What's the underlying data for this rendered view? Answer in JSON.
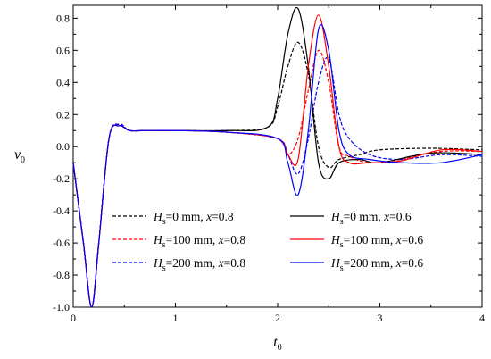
{
  "chart_data": {
    "type": "line",
    "xlabel": "t",
    "xlabel_sub": "0",
    "ylabel": "v",
    "ylabel_sub": "0",
    "xlim": [
      0,
      4
    ],
    "ylim": [
      -1.0,
      0.88
    ],
    "xticks": [
      0,
      1,
      2,
      3,
      4
    ],
    "xtick_labels": [
      "0",
      "1",
      "2",
      "3",
      "4"
    ],
    "yticks": [
      -1.0,
      -0.8,
      -0.6,
      -0.4,
      -0.2,
      0.0,
      0.2,
      0.4,
      0.6,
      0.8
    ],
    "ytick_labels": [
      "-1.0",
      "-0.8",
      "-0.6",
      "-0.4",
      "-0.2",
      "0.0",
      "0.2",
      "0.4",
      "0.6",
      "0.8"
    ],
    "grid": false,
    "legend_position": "lower-center-right",
    "series": [
      {
        "name": "Hs=0 mm, x=0.8",
        "legend": {
          "var": "H",
          "sub": "s",
          "rest1": "=0 mm,    ",
          "var2": "x",
          "rest2": "=0.8"
        },
        "color": "#000000",
        "dash": "dash",
        "x": [
          0,
          0.1,
          0.18,
          0.25,
          0.35,
          0.45,
          0.55,
          0.7,
          1.0,
          1.5,
          1.9,
          2.0,
          2.1,
          2.2,
          2.3,
          2.4,
          2.5,
          2.6,
          2.8,
          3.0,
          3.5,
          4.0
        ],
        "y": [
          -0.1,
          -0.6,
          -1.0,
          -0.6,
          0.05,
          0.14,
          0.1,
          0.1,
          0.1,
          0.1,
          0.12,
          0.25,
          0.5,
          0.65,
          0.45,
          0.0,
          -0.13,
          -0.08,
          -0.05,
          -0.02,
          -0.01,
          -0.02
        ]
      },
      {
        "name": "Hs=100 mm, x=0.8",
        "legend": {
          "var": "H",
          "sub": "s",
          "rest1": "=100 mm, ",
          "var2": "x",
          "rest2": "=0.8"
        },
        "color": "#ff0000",
        "dash": "dash",
        "x": [
          0,
          0.1,
          0.18,
          0.25,
          0.35,
          0.45,
          0.55,
          0.7,
          1.0,
          1.5,
          2.0,
          2.1,
          2.2,
          2.3,
          2.4,
          2.5,
          2.6,
          2.7,
          2.9,
          3.2,
          3.6,
          4.0
        ],
        "y": [
          -0.1,
          -0.6,
          -1.0,
          -0.6,
          0.05,
          0.14,
          0.1,
          0.1,
          0.1,
          0.09,
          0.05,
          -0.05,
          0.05,
          0.35,
          0.6,
          0.4,
          0.0,
          -0.06,
          -0.1,
          -0.08,
          -0.03,
          -0.03
        ]
      },
      {
        "name": "Hs=200 mm, x=0.8",
        "legend": {
          "var": "H",
          "sub": "s",
          "rest1": "=200 mm, ",
          "var2": "x",
          "rest2": "=0.8"
        },
        "color": "#0000ff",
        "dash": "dash",
        "x": [
          0,
          0.1,
          0.18,
          0.25,
          0.35,
          0.45,
          0.55,
          0.7,
          1.0,
          1.5,
          2.0,
          2.1,
          2.2,
          2.3,
          2.4,
          2.5,
          2.6,
          2.7,
          2.9,
          3.2,
          3.6,
          4.0
        ],
        "y": [
          -0.1,
          -0.6,
          -1.0,
          -0.6,
          0.05,
          0.14,
          0.1,
          0.1,
          0.1,
          0.09,
          0.05,
          -0.05,
          -0.17,
          0.05,
          0.4,
          0.55,
          0.2,
          0.05,
          -0.05,
          -0.08,
          -0.05,
          -0.06
        ]
      },
      {
        "name": "Hs=0 mm, x=0.6",
        "legend": {
          "var": "H",
          "sub": "s",
          "rest1": "=0 mm,    ",
          "var2": "x",
          "rest2": "=0.6"
        },
        "color": "#000000",
        "dash": "solid",
        "x": [
          0,
          0.1,
          0.18,
          0.25,
          0.35,
          0.45,
          0.55,
          0.7,
          1.0,
          1.5,
          1.9,
          2.0,
          2.1,
          2.2,
          2.3,
          2.4,
          2.5,
          2.6,
          2.8,
          3.0,
          3.5,
          4.0
        ],
        "y": [
          -0.1,
          -0.6,
          -1.0,
          -0.6,
          0.05,
          0.13,
          0.1,
          0.1,
          0.1,
          0.1,
          0.12,
          0.3,
          0.7,
          0.86,
          0.5,
          -0.1,
          -0.2,
          -0.1,
          -0.08,
          -0.1,
          -0.04,
          -0.05
        ]
      },
      {
        "name": "Hs=100 mm, x=0.6",
        "legend": {
          "var": "H",
          "sub": "s",
          "rest1": "=100 mm, ",
          "var2": "x",
          "rest2": "=0.6"
        },
        "color": "#ff0000",
        "dash": "solid",
        "x": [
          0,
          0.1,
          0.18,
          0.25,
          0.35,
          0.45,
          0.55,
          0.7,
          1.0,
          1.5,
          2.0,
          2.1,
          2.2,
          2.3,
          2.4,
          2.5,
          2.6,
          2.7,
          2.9,
          3.2,
          3.6,
          4.0
        ],
        "y": [
          -0.1,
          -0.6,
          -1.0,
          -0.6,
          0.05,
          0.13,
          0.1,
          0.1,
          0.1,
          0.09,
          0.05,
          -0.05,
          -0.08,
          0.5,
          0.82,
          0.5,
          0.0,
          -0.1,
          -0.1,
          -0.09,
          -0.02,
          -0.03
        ]
      },
      {
        "name": "Hs=200 mm, x=0.6",
        "legend": {
          "var": "H",
          "sub": "s",
          "rest1": "=200 mm, ",
          "var2": "x",
          "rest2": "=0.6"
        },
        "color": "#0000ff",
        "dash": "solid",
        "x": [
          0,
          0.1,
          0.18,
          0.25,
          0.35,
          0.45,
          0.55,
          0.7,
          1.0,
          1.5,
          2.0,
          2.1,
          2.2,
          2.3,
          2.4,
          2.5,
          2.6,
          2.7,
          2.9,
          3.2,
          3.6,
          4.0
        ],
        "y": [
          -0.1,
          -0.6,
          -1.0,
          -0.6,
          0.05,
          0.13,
          0.1,
          0.1,
          0.1,
          0.09,
          0.05,
          -0.1,
          -0.3,
          0.1,
          0.73,
          0.6,
          0.1,
          -0.05,
          -0.08,
          -0.1,
          -0.1,
          -0.05
        ]
      }
    ]
  }
}
